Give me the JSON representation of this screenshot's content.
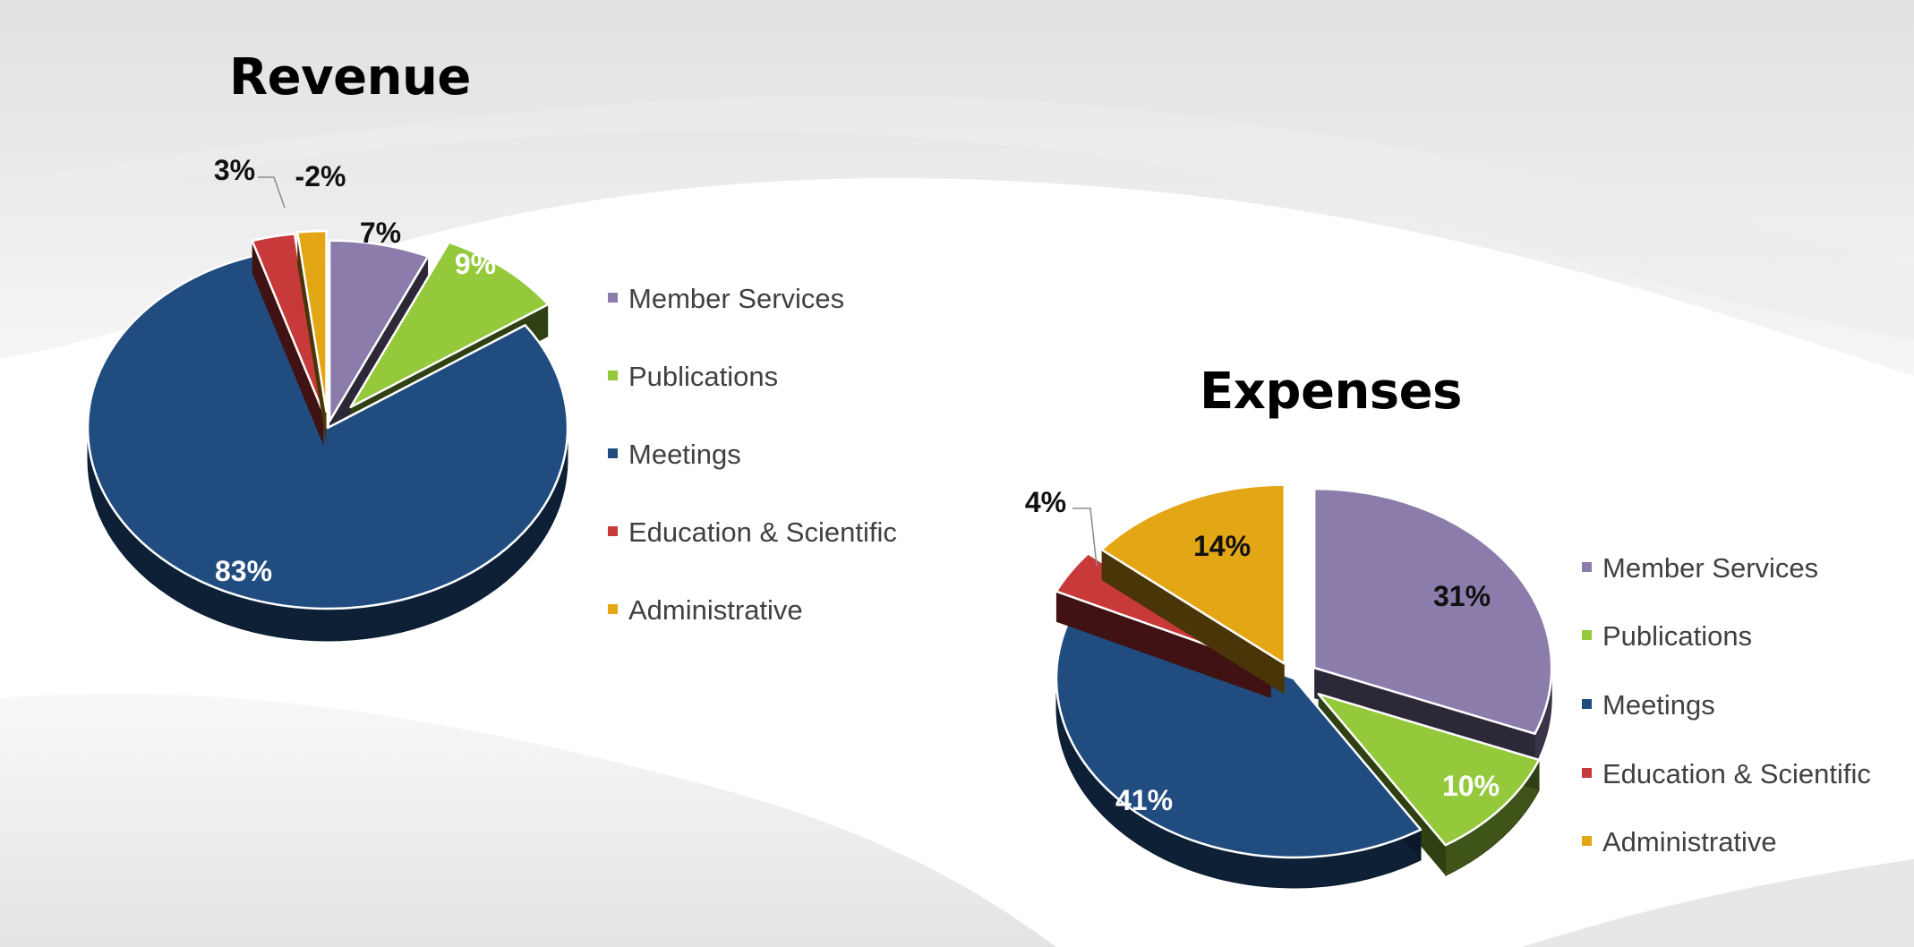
{
  "slide": {
    "background": "#ffffff",
    "background_swoosh": "#e4e5e7"
  },
  "chart_data": [
    {
      "type": "pie",
      "style": "3d-exploded",
      "title": "Revenue",
      "categories": [
        "Member Services",
        "Publications",
        "Meetings",
        "Education & Scientific",
        "Administrative"
      ],
      "values": [
        7,
        9,
        83,
        3,
        -2
      ],
      "labels": [
        "7%",
        "9%",
        "83%",
        "3%",
        "-2%"
      ],
      "colors": [
        "#8c7cab",
        "#94c93c",
        "#204c80",
        "#c8393a",
        "#e3a615"
      ],
      "legend_position": "right"
    },
    {
      "type": "pie",
      "style": "3d-exploded",
      "title": "Expenses",
      "categories": [
        "Member Services",
        "Publications",
        "Meetings",
        "Education & Scientific",
        "Administrative"
      ],
      "values": [
        31,
        10,
        41,
        4,
        14
      ],
      "labels": [
        "31%",
        "10%",
        "41%",
        "4%",
        "14%"
      ],
      "colors": [
        "#8c7cab",
        "#94c93c",
        "#204c80",
        "#c8393a",
        "#e3a615"
      ],
      "legend_position": "right"
    }
  ]
}
